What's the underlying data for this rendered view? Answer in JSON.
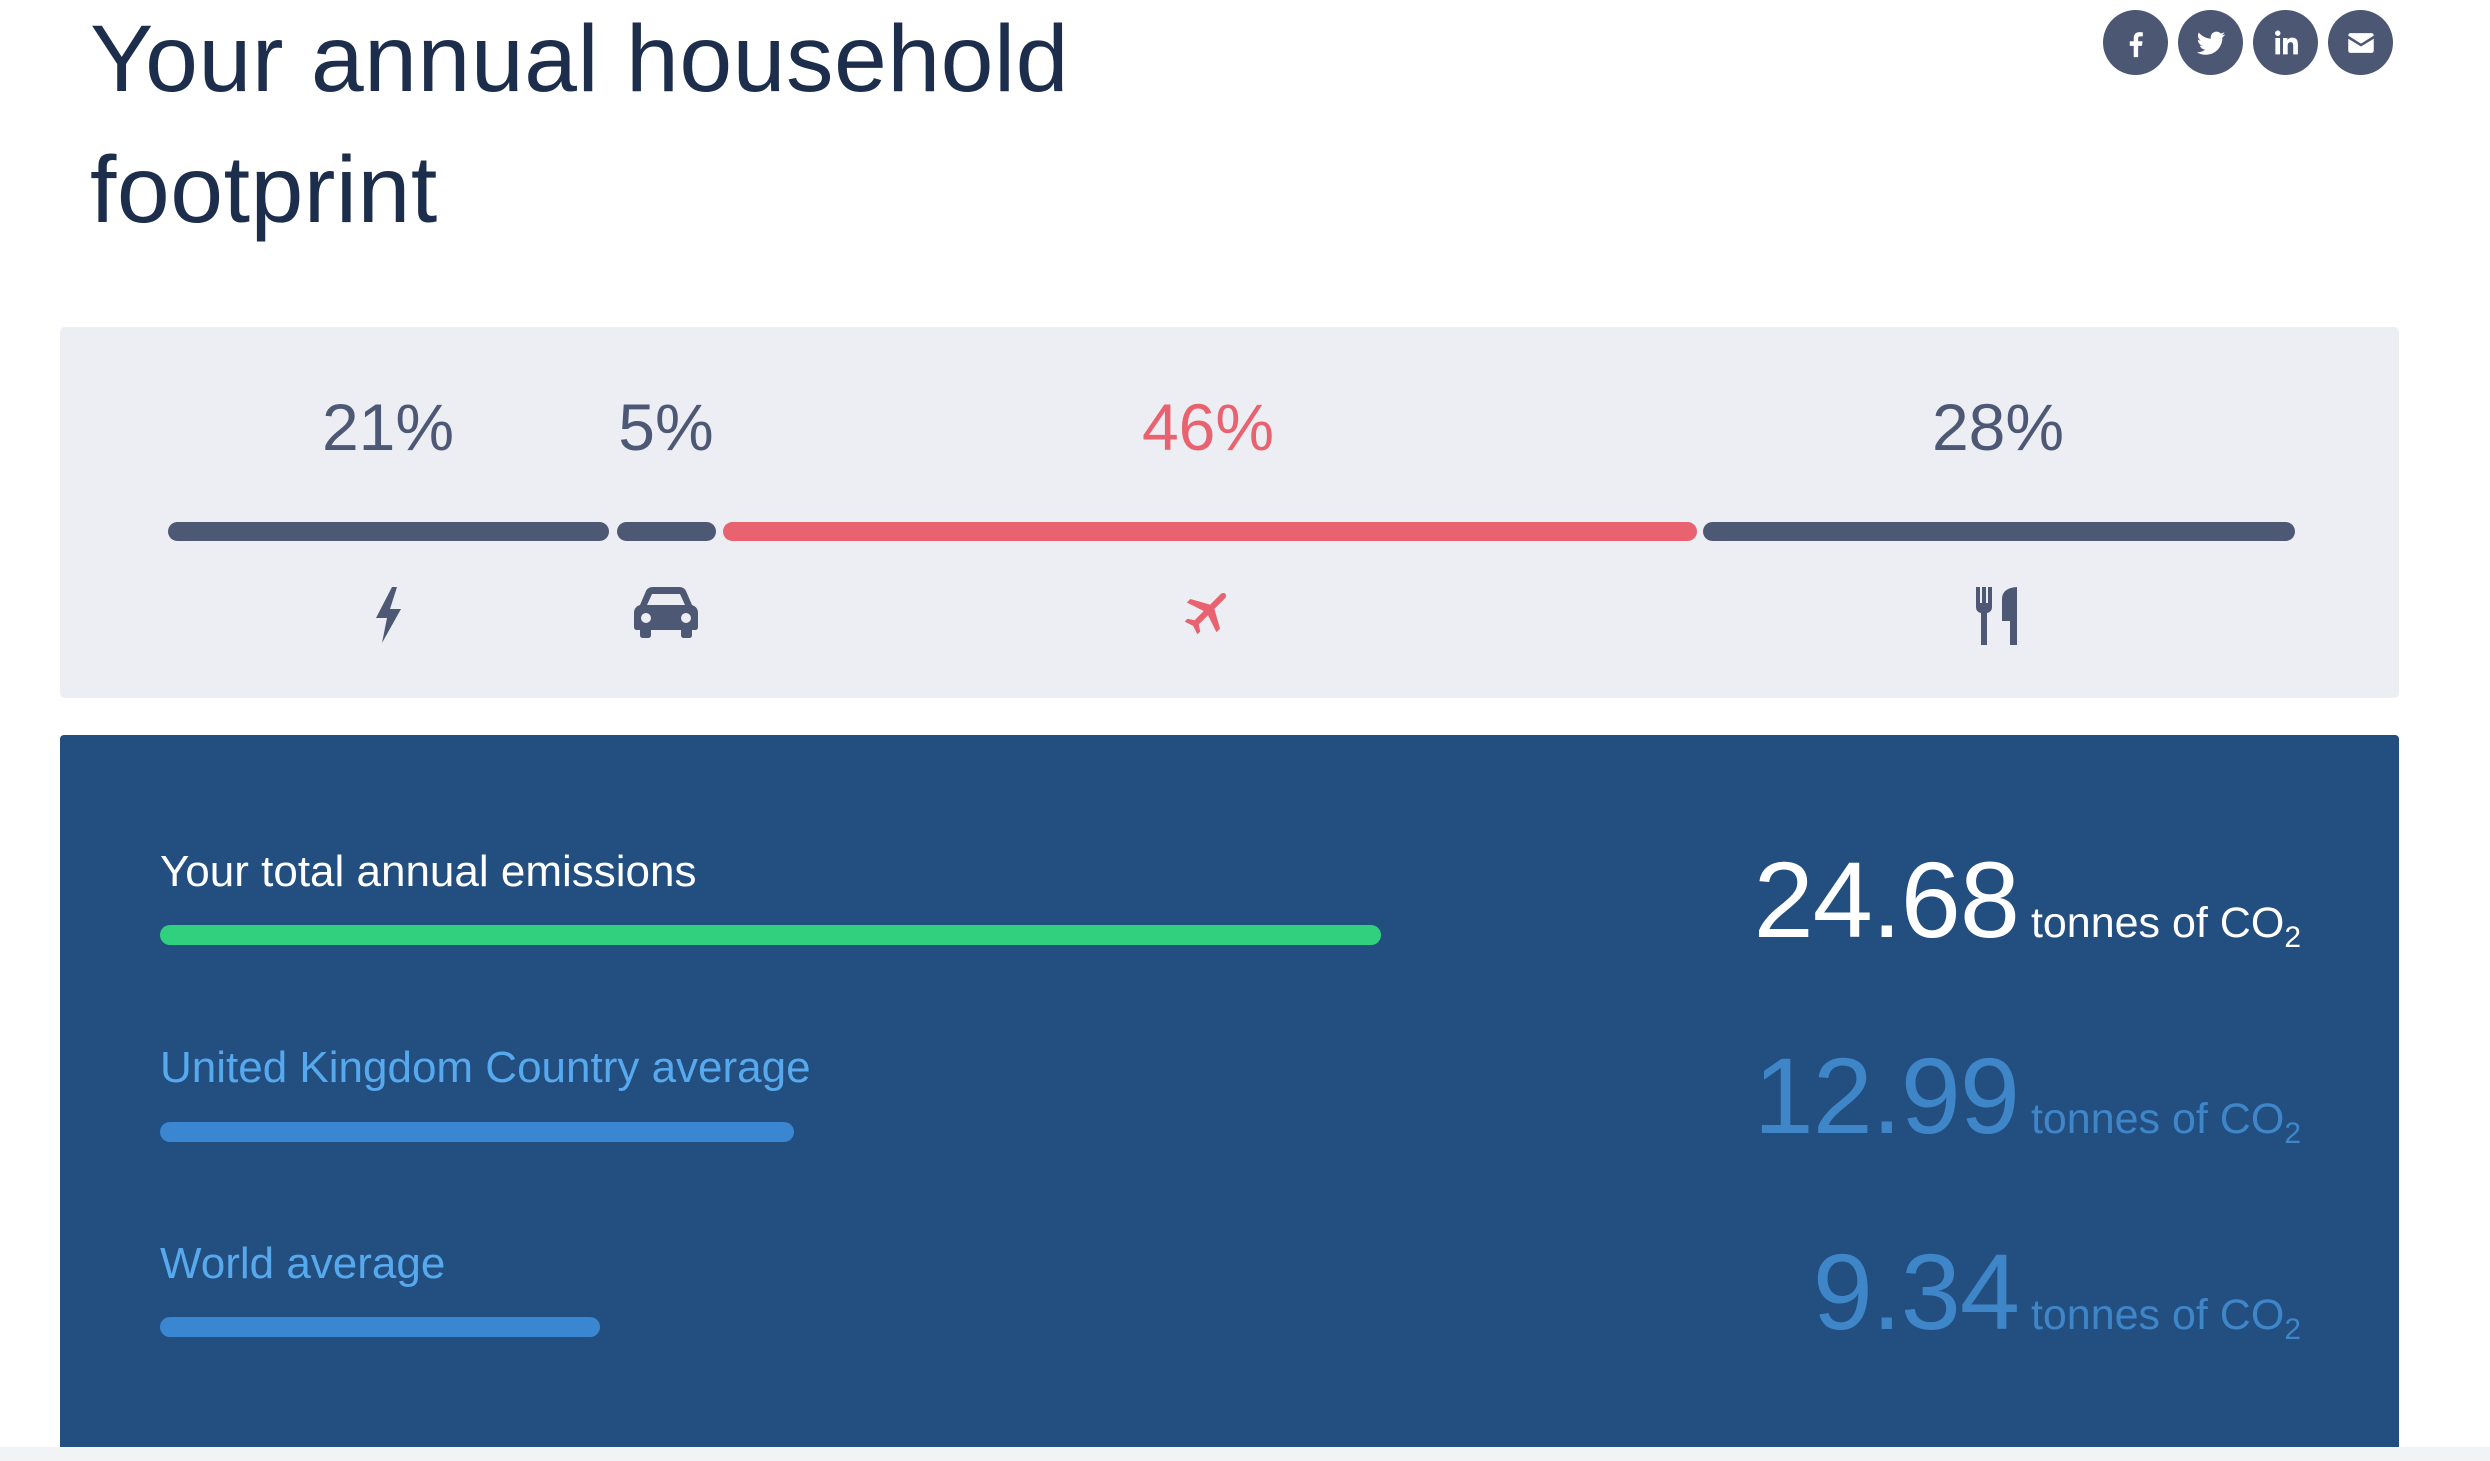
{
  "header": {
    "title_line1": "Your annual household",
    "title_line2": "footprint"
  },
  "social": [
    {
      "icon": "facebook-icon"
    },
    {
      "icon": "twitter-icon"
    },
    {
      "icon": "linkedin-icon"
    },
    {
      "icon": "email-icon"
    }
  ],
  "breakdown": {
    "categories": [
      {
        "name": "energy",
        "icon": "lightning-icon",
        "percent_label": "21%",
        "share": 21,
        "highlight": false
      },
      {
        "name": "car",
        "icon": "car-icon",
        "percent_label": "5%",
        "share": 5,
        "highlight": false
      },
      {
        "name": "flights",
        "icon": "airplane-icon",
        "percent_label": "46%",
        "share": 46,
        "highlight": true
      },
      {
        "name": "food",
        "icon": "cutlery-icon",
        "percent_label": "28%",
        "share": 28,
        "highlight": false
      }
    ],
    "colors": {
      "default": "#4d5874",
      "highlight": "#e8626f",
      "background": "#eceef3"
    }
  },
  "emissions": {
    "background": "#234e80",
    "unit_text": "tonnes of CO",
    "unit_subscript": "2",
    "rows": [
      {
        "label": "Your total annual emissions",
        "value": "24.68",
        "bar_color": "#2fd17e",
        "bar_fraction": 1.0
      },
      {
        "label": "United Kingdom Country average",
        "value": "12.99",
        "bar_color": "#3b86d0",
        "bar_fraction": 0.52
      },
      {
        "label": "World average",
        "value": "9.34",
        "bar_color": "#3b86d0",
        "bar_fraction": 0.36
      }
    ]
  }
}
